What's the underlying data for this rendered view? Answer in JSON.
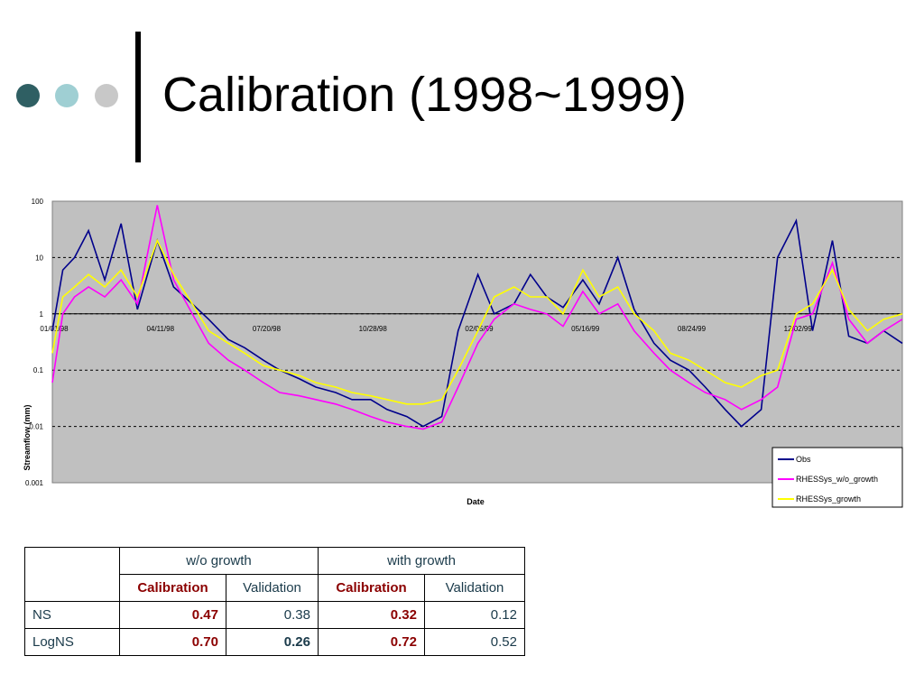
{
  "slide": {
    "title": "Calibration (1998~1999)",
    "bullet_colors": [
      "#2f5f63",
      "#9fcfd3",
      "#c8c8c8"
    ]
  },
  "chart_data": {
    "type": "line",
    "title": "",
    "xlabel": "Date",
    "ylabel": "Streamflow (mm)",
    "y_scale": "log",
    "ylim": [
      0.001,
      100
    ],
    "y_ticks": [
      "100",
      "10",
      "1",
      "0.1",
      "0.01",
      "0.001"
    ],
    "x_tick_labels": [
      "01/01/98",
      "04/11/98",
      "07/20/98",
      "10/28/98",
      "02/05/99",
      "05/16/99",
      "08/24/99",
      "12/02/99"
    ],
    "x_range": [
      "01/01/98",
      "12/31/99"
    ],
    "grid": "dashed horizontal at each decade",
    "background": "#c0c0c0",
    "legend_position": "bottom-right",
    "series": [
      {
        "name": "Obs",
        "color": "#00008b",
        "x": [
          "1998-01-01",
          "1998-01-10",
          "1998-01-20",
          "1998-02-01",
          "1998-02-15",
          "1998-03-01",
          "1998-03-15",
          "1998-04-01",
          "1998-04-15",
          "1998-05-01",
          "1998-05-15",
          "1998-06-01",
          "1998-06-15",
          "1998-07-01",
          "1998-07-15",
          "1998-08-01",
          "1998-08-15",
          "1998-09-01",
          "1998-09-15",
          "1998-10-01",
          "1998-10-15",
          "1998-11-01",
          "1998-11-15",
          "1998-12-01",
          "1998-12-15",
          "1999-01-01",
          "1999-01-15",
          "1999-02-01",
          "1999-02-15",
          "1999-03-01",
          "1999-03-15",
          "1999-04-01",
          "1999-04-15",
          "1999-05-01",
          "1999-05-15",
          "1999-06-01",
          "1999-06-15",
          "1999-07-01",
          "1999-07-15",
          "1999-08-01",
          "1999-08-15",
          "1999-09-01",
          "1999-09-15",
          "1999-10-01",
          "1999-10-15",
          "1999-11-01",
          "1999-11-15",
          "1999-12-01",
          "1999-12-15",
          "1999-12-31"
        ],
        "y": [
          0.5,
          6,
          10,
          30,
          4,
          40,
          1.2,
          20,
          3,
          1.5,
          0.8,
          0.35,
          0.25,
          0.15,
          0.1,
          0.07,
          0.05,
          0.04,
          0.03,
          0.03,
          0.02,
          0.015,
          0.01,
          0.015,
          0.5,
          5,
          1,
          1.5,
          5,
          2,
          1.3,
          4,
          1.5,
          10,
          1.2,
          0.3,
          0.15,
          0.1,
          0.05,
          0.02,
          0.01,
          0.02,
          10,
          45,
          0.5,
          20,
          0.4,
          0.3,
          0.5,
          0.3
        ]
      },
      {
        "name": "RHESSys_w/o_growth",
        "color": "#ff00ff",
        "x": [
          "1998-01-01",
          "1998-01-10",
          "1998-01-20",
          "1998-02-01",
          "1998-02-15",
          "1998-03-01",
          "1998-03-15",
          "1998-04-01",
          "1998-04-15",
          "1998-05-01",
          "1998-05-15",
          "1998-06-01",
          "1998-06-15",
          "1998-07-01",
          "1998-07-15",
          "1998-08-01",
          "1998-08-15",
          "1998-09-01",
          "1998-09-15",
          "1998-10-01",
          "1998-10-15",
          "1998-11-01",
          "1998-11-15",
          "1998-12-01",
          "1998-12-15",
          "1999-01-01",
          "1999-01-15",
          "1999-02-01",
          "1999-02-15",
          "1999-03-01",
          "1999-03-15",
          "1999-04-01",
          "1999-04-15",
          "1999-05-01",
          "1999-05-15",
          "1999-06-01",
          "1999-06-15",
          "1999-07-01",
          "1999-07-15",
          "1999-08-01",
          "1999-08-15",
          "1999-09-01",
          "1999-09-15",
          "1999-10-01",
          "1999-10-15",
          "1999-11-01",
          "1999-11-15",
          "1999-12-01",
          "1999-12-15",
          "1999-12-31"
        ],
        "y": [
          0.06,
          1,
          2,
          3,
          2,
          4,
          1.5,
          85,
          4,
          1,
          0.3,
          0.15,
          0.1,
          0.06,
          0.04,
          0.035,
          0.03,
          0.025,
          0.02,
          0.015,
          0.012,
          0.01,
          0.009,
          0.012,
          0.05,
          0.3,
          0.8,
          1.5,
          1.2,
          1,
          0.6,
          2.5,
          1,
          1.5,
          0.5,
          0.2,
          0.1,
          0.06,
          0.04,
          0.03,
          0.02,
          0.03,
          0.05,
          0.8,
          1,
          8,
          0.8,
          0.3,
          0.5,
          0.8
        ]
      },
      {
        "name": "RHESSys_growth",
        "color": "#ffff00",
        "x": [
          "1998-01-01",
          "1998-01-10",
          "1998-01-20",
          "1998-02-01",
          "1998-02-15",
          "1998-03-01",
          "1998-03-15",
          "1998-04-01",
          "1998-04-15",
          "1998-05-01",
          "1998-05-15",
          "1998-06-01",
          "1998-06-15",
          "1998-07-01",
          "1998-07-15",
          "1998-08-01",
          "1998-08-15",
          "1998-09-01",
          "1998-09-15",
          "1998-10-01",
          "1998-10-15",
          "1998-11-01",
          "1998-11-15",
          "1998-12-01",
          "1998-12-15",
          "1999-01-01",
          "1999-01-15",
          "1999-02-01",
          "1999-02-15",
          "1999-03-01",
          "1999-03-15",
          "1999-04-01",
          "1999-04-15",
          "1999-05-01",
          "1999-05-15",
          "1999-06-01",
          "1999-06-15",
          "1999-07-01",
          "1999-07-15",
          "1999-08-01",
          "1999-08-15",
          "1999-09-01",
          "1999-09-15",
          "1999-10-01",
          "1999-10-15",
          "1999-11-01",
          "1999-11-15",
          "1999-12-01",
          "1999-12-15",
          "1999-12-31"
        ],
        "y": [
          0.2,
          2,
          3,
          5,
          3,
          6,
          2,
          20,
          5,
          1.5,
          0.5,
          0.3,
          0.2,
          0.12,
          0.1,
          0.08,
          0.06,
          0.05,
          0.04,
          0.035,
          0.03,
          0.025,
          0.025,
          0.03,
          0.1,
          0.5,
          2,
          3,
          2,
          2,
          1,
          6,
          2,
          3,
          1,
          0.5,
          0.2,
          0.15,
          0.1,
          0.06,
          0.05,
          0.08,
          0.1,
          1,
          1.5,
          6,
          1.2,
          0.5,
          0.8,
          1
        ]
      }
    ]
  },
  "table": {
    "groups": [
      "w/o growth",
      "with growth"
    ],
    "subheaders": [
      "Calibration",
      "Validation",
      "Calibration",
      "Validation"
    ],
    "rows": [
      {
        "label": "NS",
        "values": [
          "0.47",
          "0.38",
          "0.32",
          "0.12"
        ]
      },
      {
        "label": "LogNS",
        "values": [
          "0.70",
          "0.26",
          "0.72",
          "0.52"
        ]
      }
    ]
  }
}
